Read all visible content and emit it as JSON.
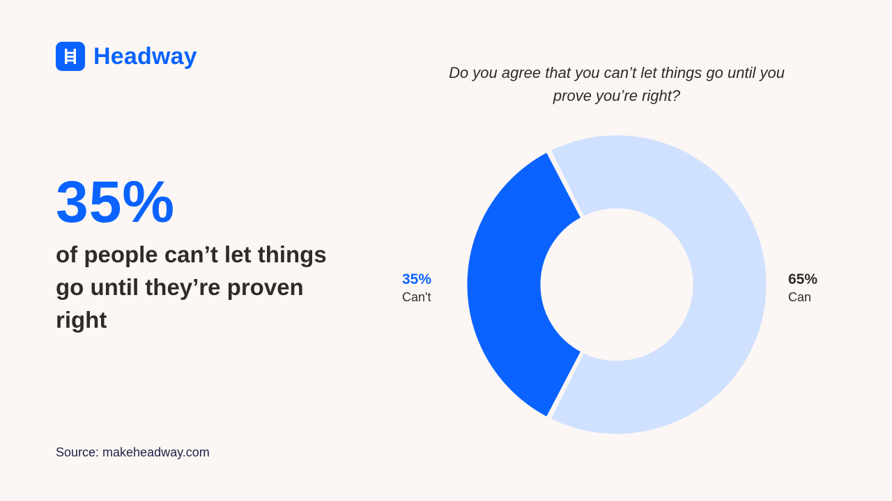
{
  "brand": {
    "name": "Headway",
    "color": "#0a63ff",
    "icon": "ladder-icon"
  },
  "headline": {
    "stat": "35%",
    "description": "of people can’t let things go until they’re proven right"
  },
  "source": "Source: makeheadway.com",
  "chart_data": {
    "type": "pie",
    "variant": "donut",
    "title": "Do you agree that you can’t let things go until you prove you’re right?",
    "slices": [
      {
        "label": "Can't",
        "value": 35,
        "display": "35%",
        "color": "#0a63ff",
        "label_color": "#0a63ff"
      },
      {
        "label": "Can",
        "value": 65,
        "display": "65%",
        "color": "#cfe1ff",
        "label_color": "#2e2b29"
      }
    ]
  }
}
